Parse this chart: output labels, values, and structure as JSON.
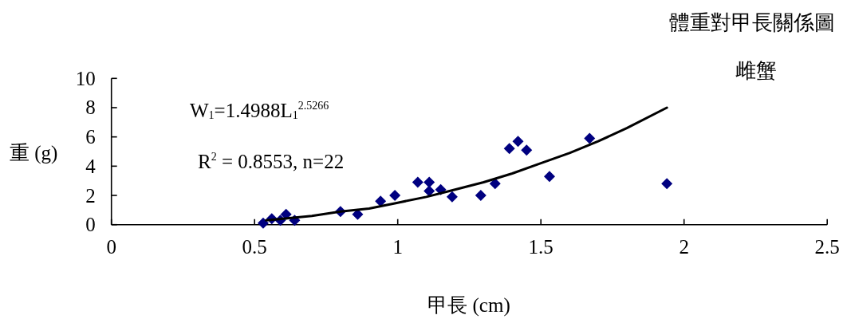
{
  "chart_data": {
    "type": "scatter",
    "title": "體重對甲長關係圖",
    "subtitle": "雌蟹",
    "xlabel": "甲長 (cm)",
    "ylabel": "重 (g)",
    "annotations": [
      "W$_{1}$=1.4988L$_{1}$$^{2.5266}$",
      "R$^{2}$ = 0.8553, n=22"
    ],
    "series": [
      {
        "color": "#000080",
        "marker": "diamond",
        "x": [
          0.53,
          0.56,
          0.59,
          0.61,
          0.64,
          0.8,
          0.86,
          0.94,
          0.99,
          1.07,
          1.11,
          1.11,
          1.15,
          1.19,
          1.29,
          1.34,
          1.39,
          1.42,
          1.45,
          1.53,
          1.67,
          1.94
        ],
        "values": [
          0.1,
          0.4,
          0.3,
          0.7,
          0.3,
          0.9,
          0.7,
          1.6,
          2.0,
          2.9,
          2.9,
          2.3,
          2.4,
          1.9,
          2.0,
          2.8,
          5.2,
          5.7,
          5.1,
          3.3,
          5.9,
          2.8
        ]
      },
      {
        "type": "line",
        "color": "#000000",
        "marker": "none",
        "line_style": "solid",
        "x": [
          0.54,
          0.6,
          0.7,
          0.8,
          0.9,
          1.0,
          1.1,
          1.2,
          1.3,
          1.4,
          1.5,
          1.6,
          1.7,
          1.8,
          1.94
        ],
        "values": [
          0.3,
          0.4,
          0.6,
          0.9,
          1.1,
          1.5,
          1.9,
          2.4,
          2.9,
          3.5,
          4.2,
          4.9,
          5.7,
          6.6,
          8.0
        ]
      }
    ],
    "xlim": [
      0,
      2.5
    ],
    "xticks": [
      0,
      0.5,
      1,
      1.5,
      2,
      2.5
    ],
    "ylim": [
      0,
      10
    ],
    "yticks": [
      0,
      2,
      4,
      6,
      8,
      10
    ],
    "grid": false
  }
}
